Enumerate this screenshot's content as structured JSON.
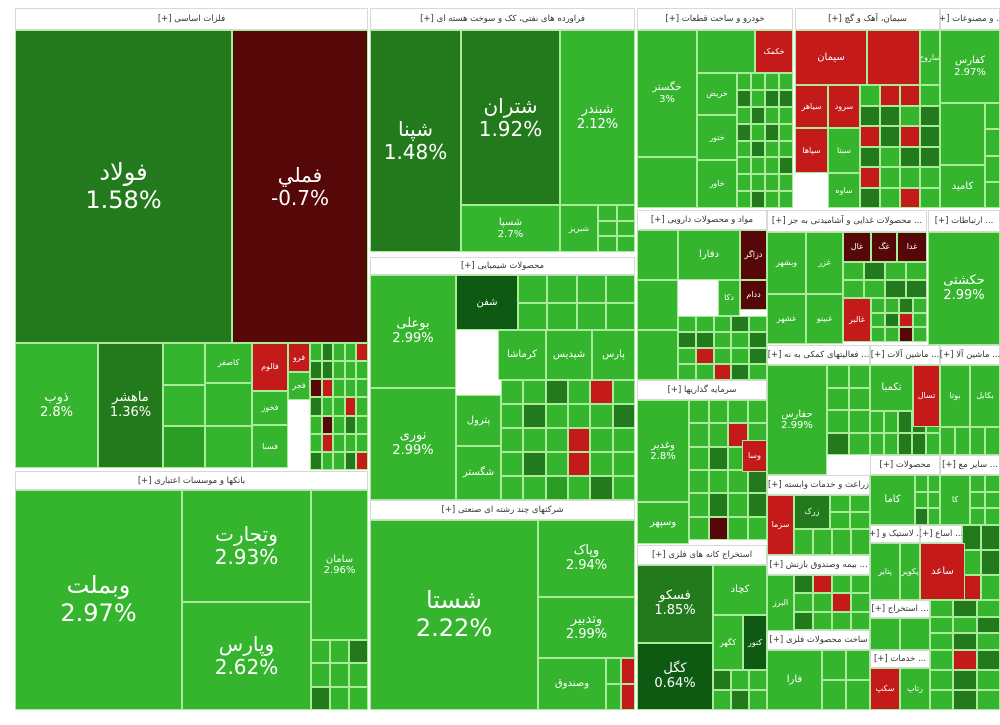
{
  "colors": {
    "g": "#35b52d",
    "g2": "#2a9e24",
    "dg": "#237a1c",
    "ddg": "#0f5a12",
    "r": "#c41a1a",
    "dr": "#560808"
  },
  "sections": [
    {
      "header": "فلزات اساسی [+]",
      "tiles": [
        {
          "label": "فولاد",
          "change": "1.58%",
          "color": "dg"
        },
        {
          "label": "فملي",
          "change": "-0.7%",
          "color": "dr"
        },
        {
          "label": "ذوب",
          "change": "2.8%",
          "color": "g"
        },
        {
          "label": "ماهشر",
          "change": "1.36%",
          "color": "dg"
        },
        {
          "label": "فالوم",
          "color": "r"
        },
        {
          "label": "فرو",
          "color": "r"
        },
        {
          "label": "فخوز",
          "color": "g"
        },
        {
          "label": "فجر",
          "color": "g"
        },
        {
          "label": "فسبا",
          "color": "g"
        },
        {
          "label": "کاصفر",
          "color": "g"
        }
      ]
    },
    {
      "header": "بانکها و موسسات اعتباری [+]",
      "tiles": [
        {
          "label": "وبملت",
          "change": "2.97%",
          "color": "g"
        },
        {
          "label": "وتجارت",
          "change": "2.93%",
          "color": "g"
        },
        {
          "label": "وپارس",
          "change": "2.62%",
          "color": "g"
        },
        {
          "label": "سامان",
          "change": "2.96%",
          "color": "g"
        }
      ]
    },
    {
      "header": "فراورده های نفتی، کک و سوخت هسته ای [+]",
      "tiles": [
        {
          "label": "شپنا",
          "change": "1.48%",
          "color": "dg"
        },
        {
          "label": "شتران",
          "change": "1.92%",
          "color": "dg"
        },
        {
          "label": "شبندر",
          "change": "2.12%",
          "color": "g"
        },
        {
          "label": "شسپا",
          "change": "2.7%",
          "color": "g"
        },
        {
          "label": "شبریز",
          "color": "g"
        }
      ]
    },
    {
      "header": "محصولات شیمیایی [+]",
      "tiles": [
        {
          "label": "بوعلی",
          "change": "2.99%",
          "color": "g"
        },
        {
          "label": "نوری",
          "change": "2.99%",
          "color": "g"
        },
        {
          "label": "کرماشا",
          "color": "g"
        },
        {
          "label": "شپدیس",
          "color": "g"
        },
        {
          "label": "پارس",
          "color": "g"
        },
        {
          "label": "پترول",
          "color": "g"
        },
        {
          "label": "شگستر",
          "color": "g"
        },
        {
          "label": "شفن",
          "color": "ddg"
        }
      ]
    },
    {
      "header": "شرکتهای چند رشته ای صنعتی [+]",
      "tiles": [
        {
          "label": "شستا",
          "change": "2.22%",
          "color": "g"
        },
        {
          "label": "وپاک",
          "change": "2.94%",
          "color": "g"
        },
        {
          "label": "وتدبیر",
          "change": "2.99%",
          "color": "g"
        },
        {
          "label": "وصندوق",
          "color": "g"
        }
      ]
    },
    {
      "header": "خودرو و ساخت قطعات [+]",
      "tiles": [
        {
          "label": "خگستر",
          "change": "3%",
          "color": "g"
        },
        {
          "label": "خکمک",
          "color": "r"
        },
        {
          "label": "خریض",
          "color": "g"
        },
        {
          "label": "ختور",
          "color": "g"
        },
        {
          "label": "خاور",
          "color": "g"
        }
      ]
    },
    {
      "header": "سیمان، آهک و گچ [+]",
      "tiles": [
        {
          "label": "سیمان",
          "color": "r"
        },
        {
          "label": "ساروج",
          "color": "g"
        },
        {
          "label": "سیاهر",
          "color": "r"
        },
        {
          "label": "سرود",
          "color": "r"
        },
        {
          "label": "سپاها",
          "color": "r"
        },
        {
          "label": "سبتا",
          "color": "g"
        },
        {
          "label": "ساوه",
          "color": "g"
        }
      ]
    },
    {
      "header": "... و مصنوعات [+]",
      "tiles": [
        {
          "label": "کفارس",
          "change": "2.97%",
          "color": "g"
        },
        {
          "label": "کامید",
          "color": "g"
        }
      ]
    },
    {
      "header": "مواد و محصولات دارویی [+]",
      "tiles": [
        {
          "label": "دفارا",
          "color": "g"
        },
        {
          "label": "دزاگر",
          "color": "dr"
        },
        {
          "label": "دکا",
          "color": "g"
        },
        {
          "label": "ددام",
          "color": "dr"
        }
      ]
    },
    {
      "header": "... محصولات غذایی و آشامیدنی به جز [+]",
      "tiles": [
        {
          "label": "وبشهر",
          "color": "g"
        },
        {
          "label": "غزر",
          "color": "g"
        },
        {
          "label": "غبینو",
          "color": "g"
        },
        {
          "label": "غشهر",
          "color": "g"
        },
        {
          "label": "غال",
          "color": "dr"
        },
        {
          "label": "غگ",
          "color": "dr"
        },
        {
          "label": "غدا",
          "color": "dr"
        },
        {
          "label": "غالبر",
          "color": "r"
        }
      ]
    },
    {
      "header": "... ارتباطات [+]",
      "tiles": [
        {
          "label": "حکشتی",
          "change": "2.99%",
          "color": "g"
        }
      ]
    },
    {
      "header": "سرمایه گذاریها [+]",
      "tiles": [
        {
          "label": "وغدیر",
          "change": "2.8%",
          "color": "g"
        },
        {
          "label": "وسپهر",
          "color": "g"
        },
        {
          "label": "وسا",
          "color": "r"
        }
      ]
    },
    {
      "header": "استخراج کانه های فلزی [+]",
      "tiles": [
        {
          "label": "فسکو",
          "change": "1.85%",
          "color": "dg"
        },
        {
          "label": "کچاد",
          "color": "g"
        },
        {
          "label": "کگهر",
          "color": "g"
        },
        {
          "label": "کنور",
          "color": "ddg"
        },
        {
          "label": "کگل",
          "change": "0.64%",
          "color": "ddg"
        }
      ]
    },
    {
      "header": "... فعالیتهای کمکی به نه [+]",
      "tiles": [
        {
          "label": "حفارس",
          "change": "2.99%",
          "color": "g"
        }
      ]
    },
    {
      "header": "... ماشین آلات [+]",
      "tiles": [
        {
          "label": "تکمبا",
          "color": "g"
        },
        {
          "label": "تسال",
          "color": "r"
        }
      ]
    },
    {
      "header": "... ماشین آلا [+]",
      "tiles": [
        {
          "label": "بوتا",
          "color": "g"
        },
        {
          "label": "بکابل",
          "color": "g"
        }
      ]
    },
    {
      "header": "محصولات [+]",
      "tiles": [
        {
          "label": "کاما",
          "color": "g"
        }
      ]
    },
    {
      "header": "... سایر مع [+]",
      "tiles": [
        {
          "label": "کا",
          "color": "g"
        }
      ]
    },
    {
      "header": "زراعت و خدمات وابسته [+]",
      "tiles": [
        {
          "label": "سزما",
          "color": "r"
        },
        {
          "label": "زرک",
          "color": "dg"
        }
      ]
    },
    {
      "header": "... بیمه وصندوق بازنش [+]",
      "tiles": [
        {
          "label": "البرز",
          "color": "g"
        }
      ]
    },
    {
      "header": "ساخت محصولات فلزی [+]",
      "tiles": [
        {
          "label": "فارا",
          "color": "g"
        }
      ]
    },
    {
      "header": "... لاستیک و [+]",
      "tiles": [
        {
          "label": "پتایر",
          "color": "g"
        },
        {
          "label": "پکویر",
          "color": "g"
        }
      ]
    },
    {
      "header": "... اساع [+]",
      "tiles": [
        {
          "label": "ساعد",
          "color": "r"
        }
      ]
    },
    {
      "header": "... استخراج [+]",
      "tiles": []
    },
    {
      "header": "... خدمات [+]",
      "tiles": [
        {
          "label": "سکپ",
          "color": "r"
        },
        {
          "label": "رتاپ",
          "color": "g"
        }
      ]
    }
  ]
}
